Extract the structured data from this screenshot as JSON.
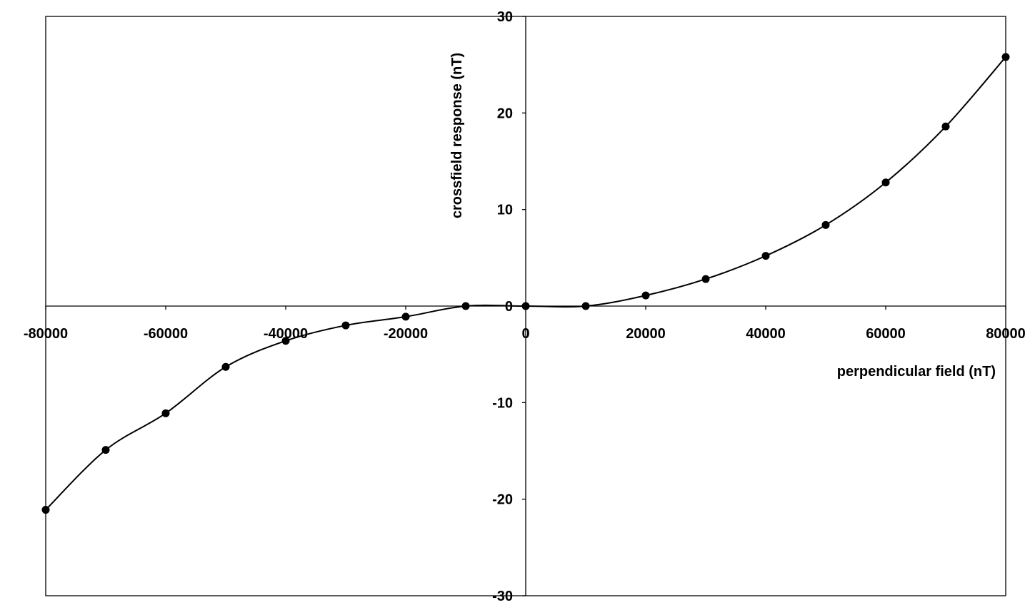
{
  "chart_data": {
    "type": "line",
    "title": "",
    "xlabel": "perpendicular field (nT)",
    "ylabel": "crossfield response (nT)",
    "xlim": [
      -80000,
      80000
    ],
    "ylim": [
      -30,
      30
    ],
    "x_ticks": [
      "-80000",
      "-60000",
      "-40000",
      "-20000",
      "0",
      "20000",
      "40000",
      "60000",
      "80000"
    ],
    "y_ticks": [
      "30",
      "20",
      "10",
      "0",
      "-10",
      "-20",
      "-30"
    ],
    "grid": false,
    "legend": "none",
    "marker": "filled-circle",
    "series": [
      {
        "x": [
          -80000,
          -70000,
          -60000,
          -50000,
          -40000,
          -30000,
          -20000,
          -10000,
          0,
          10000,
          20000,
          30000,
          40000,
          50000,
          60000,
          70000,
          80000
        ],
        "y": [
          -21.1,
          -14.9,
          -11.1,
          -6.3,
          -3.6,
          -2.0,
          -1.1,
          0.0,
          0.0,
          0.0,
          1.1,
          2.8,
          5.2,
          8.4,
          12.8,
          18.6,
          25.8
        ]
      }
    ]
  }
}
